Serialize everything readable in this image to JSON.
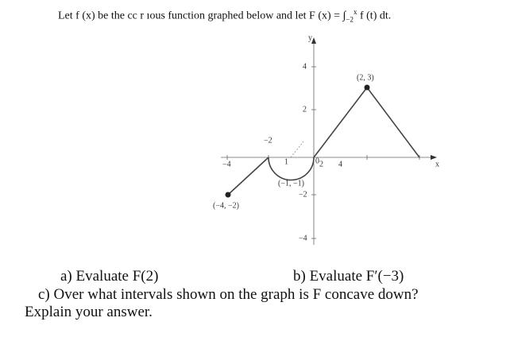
{
  "header": {
    "text_before": "Let f (x) be the cc   r ıous function graphed below and let F (x) = ∫",
    "lower_limit": "−2",
    "upper_limit": "x",
    "text_after": "f (t) dt."
  },
  "graph": {
    "y_label": "y",
    "x_label": "x",
    "y_ticks": [
      "4",
      "2",
      "−2",
      "−4"
    ],
    "x_ticks": [
      "−4",
      "−2",
      "2",
      "4"
    ],
    "origin_label": "0",
    "radius_label": "1",
    "points": [
      "(2, 3)",
      "(−1, −1)",
      "(−4, −2)"
    ]
  },
  "questions": {
    "a": "a) Evaluate F(2)",
    "b": "b) Evaluate F′(−3)",
    "c": "c) Over what intervals shown on the graph is F concave down?",
    "d": "Explain your answer."
  }
}
